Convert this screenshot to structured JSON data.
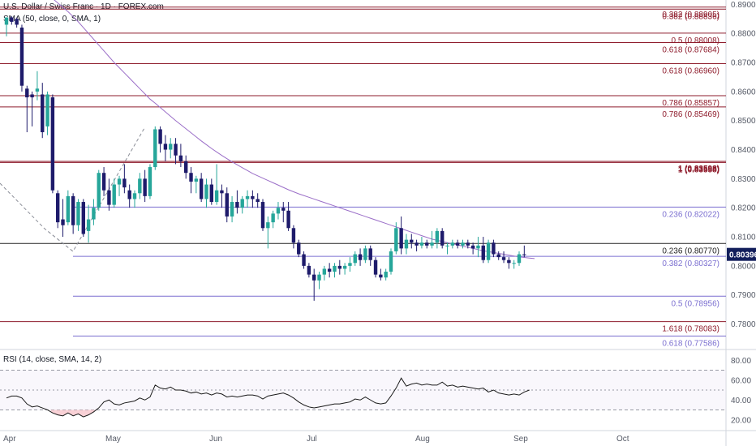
{
  "header": {
    "title": "U.S. Dollar / Swiss Franc · 1D · FOREX.com",
    "sma_label": "SMA (50, close, 0, SMA, 1)",
    "rsi_label": "RSI (14, close, SMA, 14, 2)"
  },
  "colors": {
    "bull": "#26a69a",
    "bear": "#1e1b6b",
    "sma": "#9b6fc8",
    "red_level": "#8e1b2b",
    "purple_level": "#7b6fd0",
    "last_price_bg": "#131f5c"
  },
  "price_axis": {
    "ticks": [
      "0.89000",
      "0.88000",
      "0.87000",
      "0.86000",
      "0.85000",
      "0.84000",
      "0.83000",
      "0.82000",
      "0.81000",
      "0.80000",
      "0.79000",
      "0.78000"
    ]
  },
  "rsi_axis": {
    "ticks": [
      "80.00",
      "60.00",
      "40.00",
      "20.00"
    ]
  },
  "time_axis": {
    "labels": [
      "Apr",
      "May",
      "Jun",
      "Jul",
      "Aug",
      "Sep",
      "Oct"
    ]
  },
  "last_price": "0.80396",
  "levels": [
    {
      "label": "0.382 (0.88836)",
      "price": 0.88836,
      "color": "red"
    },
    {
      "label": "0.382 (0.88905)",
      "price": 0.88905,
      "color": "red"
    },
    {
      "label": "0.5 (0.88008)",
      "price": 0.88008,
      "color": "red"
    },
    {
      "label": "0.618 (0.87684)",
      "price": 0.87684,
      "color": "red"
    },
    {
      "label": "0.618 (0.86960)",
      "price": 0.8696,
      "color": "red"
    },
    {
      "label": "0.786 (0.85857)",
      "price": 0.85857,
      "color": "red"
    },
    {
      "label": "0.786 (0.85469)",
      "price": 0.85469,
      "color": "red"
    },
    {
      "label": "1 (0.83558)",
      "price": 0.83558,
      "color": "red"
    },
    {
      "label": "1 (0.83598)",
      "price": 0.83598,
      "color": "red"
    },
    {
      "label": "0.236 (0.82022)",
      "price": 0.82022,
      "color": "purple"
    },
    {
      "label": "0.236 (0.80770)",
      "price": 0.8077,
      "color": "black"
    },
    {
      "label": "0.382 (0.80327)",
      "price": 0.80327,
      "color": "purple"
    },
    {
      "label": "0.5 (0.78956)",
      "price": 0.78956,
      "color": "purple"
    },
    {
      "label": "1.618 (0.78083)",
      "price": 0.78083,
      "color": "red"
    },
    {
      "label": "0.618 (0.77586)",
      "price": 0.77586,
      "color": "purple"
    }
  ],
  "chart_data": {
    "type": "candlestick",
    "title": "U.S. Dollar / Swiss Franc · 1D · FOREX.com",
    "ylim": [
      0.7715,
      0.8915
    ],
    "rsi_ylim": [
      10,
      90
    ],
    "rsi_levels": [
      70,
      50,
      30
    ],
    "grid": false,
    "candles": [
      {
        "o": 0.883,
        "h": 0.8855,
        "l": 0.879,
        "c": 0.8855
      },
      {
        "o": 0.8855,
        "h": 0.886,
        "l": 0.883,
        "c": 0.884
      },
      {
        "o": 0.885,
        "h": 0.8855,
        "l": 0.882,
        "c": 0.883
      },
      {
        "o": 0.882,
        "h": 0.883,
        "l": 0.86,
        "c": 0.862
      },
      {
        "o": 0.861,
        "h": 0.862,
        "l": 0.846,
        "c": 0.858
      },
      {
        "o": 0.859,
        "h": 0.86,
        "l": 0.848,
        "c": 0.858
      },
      {
        "o": 0.86,
        "h": 0.867,
        "l": 0.857,
        "c": 0.861
      },
      {
        "o": 0.859,
        "h": 0.863,
        "l": 0.844,
        "c": 0.846
      },
      {
        "o": 0.848,
        "h": 0.86,
        "l": 0.845,
        "c": 0.859
      },
      {
        "o": 0.858,
        "h": 0.859,
        "l": 0.825,
        "c": 0.826
      },
      {
        "o": 0.825,
        "h": 0.826,
        "l": 0.813,
        "c": 0.815
      },
      {
        "o": 0.816,
        "h": 0.823,
        "l": 0.81,
        "c": 0.814
      },
      {
        "o": 0.815,
        "h": 0.826,
        "l": 0.814,
        "c": 0.824
      },
      {
        "o": 0.824,
        "h": 0.825,
        "l": 0.811,
        "c": 0.814
      },
      {
        "o": 0.814,
        "h": 0.823,
        "l": 0.812,
        "c": 0.822
      },
      {
        "o": 0.822,
        "h": 0.823,
        "l": 0.81,
        "c": 0.811
      },
      {
        "o": 0.812,
        "h": 0.821,
        "l": 0.808,
        "c": 0.816
      },
      {
        "o": 0.816,
        "h": 0.823,
        "l": 0.814,
        "c": 0.82
      },
      {
        "o": 0.82,
        "h": 0.833,
        "l": 0.819,
        "c": 0.832
      },
      {
        "o": 0.832,
        "h": 0.834,
        "l": 0.824,
        "c": 0.826
      },
      {
        "o": 0.826,
        "h": 0.83,
        "l": 0.819,
        "c": 0.821
      },
      {
        "o": 0.821,
        "h": 0.83,
        "l": 0.82,
        "c": 0.828
      },
      {
        "o": 0.828,
        "h": 0.831,
        "l": 0.824,
        "c": 0.83
      },
      {
        "o": 0.83,
        "h": 0.835,
        "l": 0.825,
        "c": 0.827
      },
      {
        "o": 0.826,
        "h": 0.828,
        "l": 0.82,
        "c": 0.823
      },
      {
        "o": 0.823,
        "h": 0.826,
        "l": 0.82,
        "c": 0.825
      },
      {
        "o": 0.825,
        "h": 0.832,
        "l": 0.823,
        "c": 0.83
      },
      {
        "o": 0.83,
        "h": 0.833,
        "l": 0.822,
        "c": 0.824
      },
      {
        "o": 0.824,
        "h": 0.835,
        "l": 0.823,
        "c": 0.834
      },
      {
        "o": 0.834,
        "h": 0.848,
        "l": 0.833,
        "c": 0.847
      },
      {
        "o": 0.847,
        "h": 0.848,
        "l": 0.839,
        "c": 0.842
      },
      {
        "o": 0.842,
        "h": 0.845,
        "l": 0.836,
        "c": 0.84
      },
      {
        "o": 0.84,
        "h": 0.844,
        "l": 0.837,
        "c": 0.842
      },
      {
        "o": 0.842,
        "h": 0.844,
        "l": 0.835,
        "c": 0.838
      },
      {
        "o": 0.838,
        "h": 0.842,
        "l": 0.834,
        "c": 0.836
      },
      {
        "o": 0.836,
        "h": 0.838,
        "l": 0.83,
        "c": 0.832
      },
      {
        "o": 0.832,
        "h": 0.834,
        "l": 0.825,
        "c": 0.829
      },
      {
        "o": 0.829,
        "h": 0.831,
        "l": 0.825,
        "c": 0.83
      },
      {
        "o": 0.83,
        "h": 0.832,
        "l": 0.822,
        "c": 0.823
      },
      {
        "o": 0.823,
        "h": 0.83,
        "l": 0.82,
        "c": 0.828
      },
      {
        "o": 0.828,
        "h": 0.83,
        "l": 0.821,
        "c": 0.822
      },
      {
        "o": 0.822,
        "h": 0.835,
        "l": 0.821,
        "c": 0.826
      },
      {
        "o": 0.826,
        "h": 0.828,
        "l": 0.82,
        "c": 0.825
      },
      {
        "o": 0.825,
        "h": 0.827,
        "l": 0.815,
        "c": 0.817
      },
      {
        "o": 0.817,
        "h": 0.824,
        "l": 0.815,
        "c": 0.822
      },
      {
        "o": 0.822,
        "h": 0.826,
        "l": 0.818,
        "c": 0.82
      },
      {
        "o": 0.82,
        "h": 0.824,
        "l": 0.818,
        "c": 0.823
      },
      {
        "o": 0.823,
        "h": 0.826,
        "l": 0.82,
        "c": 0.824
      },
      {
        "o": 0.824,
        "h": 0.826,
        "l": 0.82,
        "c": 0.823
      },
      {
        "o": 0.823,
        "h": 0.825,
        "l": 0.82,
        "c": 0.822
      },
      {
        "o": 0.822,
        "h": 0.823,
        "l": 0.812,
        "c": 0.813
      },
      {
        "o": 0.813,
        "h": 0.817,
        "l": 0.806,
        "c": 0.815
      },
      {
        "o": 0.815,
        "h": 0.819,
        "l": 0.813,
        "c": 0.818
      },
      {
        "o": 0.818,
        "h": 0.822,
        "l": 0.816,
        "c": 0.82
      },
      {
        "o": 0.82,
        "h": 0.822,
        "l": 0.815,
        "c": 0.819
      },
      {
        "o": 0.819,
        "h": 0.822,
        "l": 0.812,
        "c": 0.813
      },
      {
        "o": 0.813,
        "h": 0.814,
        "l": 0.806,
        "c": 0.808
      },
      {
        "o": 0.808,
        "h": 0.809,
        "l": 0.803,
        "c": 0.804
      },
      {
        "o": 0.804,
        "h": 0.805,
        "l": 0.799,
        "c": 0.8
      },
      {
        "o": 0.8,
        "h": 0.801,
        "l": 0.796,
        "c": 0.797
      },
      {
        "o": 0.797,
        "h": 0.799,
        "l": 0.788,
        "c": 0.795
      },
      {
        "o": 0.795,
        "h": 0.798,
        "l": 0.792,
        "c": 0.797
      },
      {
        "o": 0.797,
        "h": 0.8,
        "l": 0.795,
        "c": 0.799
      },
      {
        "o": 0.799,
        "h": 0.801,
        "l": 0.796,
        "c": 0.798
      },
      {
        "o": 0.798,
        "h": 0.801,
        "l": 0.796,
        "c": 0.8
      },
      {
        "o": 0.8,
        "h": 0.802,
        "l": 0.797,
        "c": 0.799
      },
      {
        "o": 0.799,
        "h": 0.801,
        "l": 0.797,
        "c": 0.8
      },
      {
        "o": 0.8,
        "h": 0.803,
        "l": 0.798,
        "c": 0.801
      },
      {
        "o": 0.801,
        "h": 0.805,
        "l": 0.8,
        "c": 0.804
      },
      {
        "o": 0.804,
        "h": 0.806,
        "l": 0.8,
        "c": 0.802
      },
      {
        "o": 0.802,
        "h": 0.807,
        "l": 0.801,
        "c": 0.806
      },
      {
        "o": 0.806,
        "h": 0.807,
        "l": 0.8,
        "c": 0.802
      },
      {
        "o": 0.802,
        "h": 0.803,
        "l": 0.796,
        "c": 0.797
      },
      {
        "o": 0.797,
        "h": 0.799,
        "l": 0.795,
        "c": 0.796
      },
      {
        "o": 0.796,
        "h": 0.799,
        "l": 0.795,
        "c": 0.798
      },
      {
        "o": 0.798,
        "h": 0.806,
        "l": 0.797,
        "c": 0.805
      },
      {
        "o": 0.805,
        "h": 0.815,
        "l": 0.804,
        "c": 0.813
      },
      {
        "o": 0.813,
        "h": 0.817,
        "l": 0.804,
        "c": 0.806
      },
      {
        "o": 0.806,
        "h": 0.811,
        "l": 0.804,
        "c": 0.809
      },
      {
        "o": 0.809,
        "h": 0.811,
        "l": 0.806,
        "c": 0.808
      },
      {
        "o": 0.808,
        "h": 0.809,
        "l": 0.805,
        "c": 0.807
      },
      {
        "o": 0.807,
        "h": 0.81,
        "l": 0.806,
        "c": 0.808
      },
      {
        "o": 0.808,
        "h": 0.809,
        "l": 0.806,
        "c": 0.807
      },
      {
        "o": 0.807,
        "h": 0.812,
        "l": 0.806,
        "c": 0.808
      },
      {
        "o": 0.808,
        "h": 0.813,
        "l": 0.806,
        "c": 0.812
      },
      {
        "o": 0.812,
        "h": 0.813,
        "l": 0.806,
        "c": 0.807
      },
      {
        "o": 0.807,
        "h": 0.808,
        "l": 0.804,
        "c": 0.807
      },
      {
        "o": 0.807,
        "h": 0.809,
        "l": 0.806,
        "c": 0.808
      },
      {
        "o": 0.808,
        "h": 0.809,
        "l": 0.806,
        "c": 0.807
      },
      {
        "o": 0.807,
        "h": 0.809,
        "l": 0.806,
        "c": 0.808
      },
      {
        "o": 0.808,
        "h": 0.809,
        "l": 0.806,
        "c": 0.807
      },
      {
        "o": 0.807,
        "h": 0.808,
        "l": 0.804,
        "c": 0.806
      },
      {
        "o": 0.806,
        "h": 0.81,
        "l": 0.803,
        "c": 0.807
      },
      {
        "o": 0.807,
        "h": 0.81,
        "l": 0.801,
        "c": 0.802
      },
      {
        "o": 0.802,
        "h": 0.809,
        "l": 0.801,
        "c": 0.808
      },
      {
        "o": 0.808,
        "h": 0.809,
        "l": 0.803,
        "c": 0.804
      },
      {
        "o": 0.804,
        "h": 0.805,
        "l": 0.802,
        "c": 0.803
      },
      {
        "o": 0.803,
        "h": 0.805,
        "l": 0.801,
        "c": 0.802
      },
      {
        "o": 0.802,
        "h": 0.803,
        "l": 0.799,
        "c": 0.801
      },
      {
        "o": 0.801,
        "h": 0.802,
        "l": 0.799,
        "c": 0.801
      },
      {
        "o": 0.801,
        "h": 0.805,
        "l": 0.8,
        "c": 0.804
      },
      {
        "o": 0.804,
        "h": 0.807,
        "l": 0.803,
        "c": 0.80396
      }
    ],
    "sma_start_index": 4,
    "sma": [
      0.899,
      0.898,
      0.8965,
      0.895,
      0.8935,
      0.892,
      0.8905,
      0.889,
      0.8875,
      0.8858,
      0.884,
      0.882,
      0.88,
      0.878,
      0.876,
      0.874,
      0.872,
      0.87,
      0.8682,
      0.8664,
      0.8646,
      0.8628,
      0.861,
      0.8592,
      0.8574,
      0.856,
      0.8545,
      0.853,
      0.8515,
      0.85,
      0.8486,
      0.8472,
      0.8458,
      0.8444,
      0.843,
      0.8417,
      0.8404,
      0.8392,
      0.838,
      0.8369,
      0.8358,
      0.8348,
      0.8338,
      0.8328,
      0.8318,
      0.831,
      0.8302,
      0.8294,
      0.8286,
      0.8278,
      0.827,
      0.8262,
      0.8255,
      0.8248,
      0.8242,
      0.8236,
      0.823,
      0.8224,
      0.8218,
      0.8212,
      0.8206,
      0.82,
      0.8194,
      0.8188,
      0.8182,
      0.8176,
      0.817,
      0.8164,
      0.8158,
      0.8152,
      0.8146,
      0.814,
      0.8134,
      0.8128,
      0.8122,
      0.8116,
      0.811,
      0.8104,
      0.8098,
      0.8092,
      0.8088,
      0.8084,
      0.808,
      0.8076,
      0.8072,
      0.8068,
      0.8064,
      0.806,
      0.8056,
      0.8052,
      0.8049,
      0.8046,
      0.8043,
      0.804,
      0.8037,
      0.8034,
      0.8031,
      0.8029,
      0.8027,
      0.8025
    ],
    "rsi": [
      42,
      44,
      44,
      42,
      36,
      33,
      34,
      32,
      30,
      27,
      25,
      24,
      27,
      24,
      26,
      23,
      25,
      28,
      32,
      38,
      40,
      36,
      35,
      37,
      38,
      39,
      42,
      40,
      43,
      55,
      52,
      51,
      53,
      50,
      50,
      49,
      47,
      48,
      46,
      47,
      45,
      47,
      46,
      43,
      44,
      43,
      44,
      45,
      45,
      44,
      41,
      44,
      45,
      46,
      47,
      45,
      42,
      38,
      35,
      33,
      32,
      33,
      34,
      35,
      36,
      36,
      37,
      38,
      41,
      40,
      43,
      40,
      37,
      36,
      37,
      44,
      52,
      62,
      54,
      56,
      57,
      55,
      56,
      55,
      55,
      58,
      54,
      55,
      53,
      54,
      53,
      52,
      51,
      52,
      48,
      50,
      47,
      46,
      45,
      46,
      45,
      48,
      50
    ]
  }
}
